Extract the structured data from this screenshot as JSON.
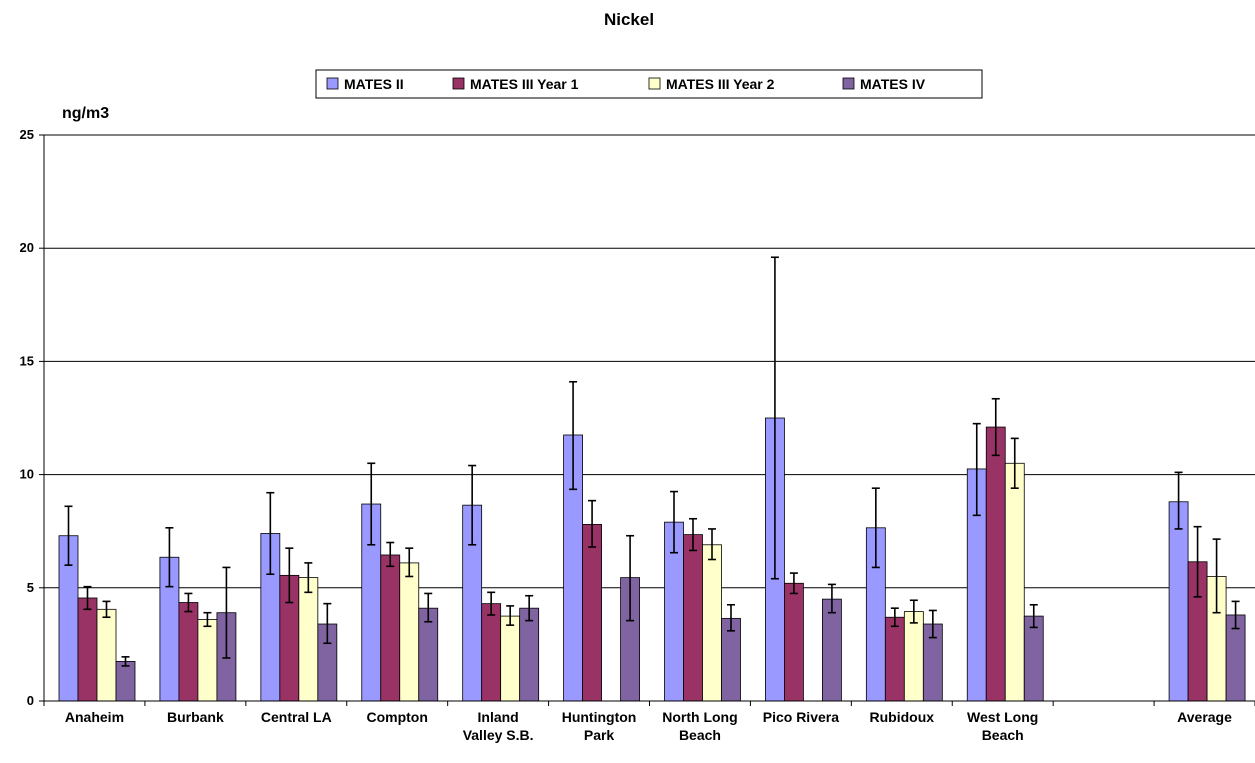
{
  "chart_data": {
    "type": "bar",
    "title": "Nickel",
    "ylabel": "ng/m3",
    "xlabel": "",
    "ylim": [
      0,
      25
    ],
    "yticks": [
      0,
      5,
      10,
      15,
      20,
      25
    ],
    "grid": true,
    "legend_position": "top",
    "categories": [
      [
        "Anaheim"
      ],
      [
        "Burbank"
      ],
      [
        "Central LA"
      ],
      [
        "Compton"
      ],
      [
        "Inland",
        "Valley S.B."
      ],
      [
        "Huntington",
        "Park"
      ],
      [
        "North Long",
        "Beach"
      ],
      [
        "Pico Rivera"
      ],
      [
        "Rubidoux"
      ],
      [
        "West Long",
        "Beach"
      ],
      [
        ""
      ],
      [
        "Average"
      ]
    ],
    "series": [
      {
        "name": "MATES II",
        "color": "#9999FF",
        "values": [
          7.3,
          6.35,
          7.4,
          8.7,
          8.65,
          11.75,
          7.9,
          12.5,
          7.65,
          10.25,
          null,
          8.8
        ],
        "error_low": [
          6.0,
          5.05,
          5.6,
          6.9,
          6.9,
          9.35,
          6.55,
          5.4,
          5.9,
          8.2,
          null,
          7.6
        ],
        "error_high": [
          8.6,
          7.65,
          9.2,
          10.5,
          10.4,
          14.1,
          9.25,
          19.6,
          9.4,
          12.25,
          null,
          10.1
        ]
      },
      {
        "name": "MATES III Year 1",
        "color": "#993366",
        "values": [
          4.55,
          4.35,
          5.55,
          6.45,
          4.3,
          7.8,
          7.35,
          5.2,
          3.7,
          12.1,
          null,
          6.15
        ],
        "error_low": [
          4.05,
          3.95,
          4.35,
          5.95,
          3.8,
          6.8,
          6.65,
          4.75,
          3.3,
          10.85,
          null,
          4.6
        ],
        "error_high": [
          5.05,
          4.75,
          6.75,
          7.0,
          4.8,
          8.85,
          8.05,
          5.65,
          4.1,
          13.35,
          null,
          7.7
        ]
      },
      {
        "name": "MATES III Year 2",
        "color": "#FFFFCC",
        "values": [
          4.05,
          3.6,
          5.45,
          6.1,
          3.75,
          null,
          6.9,
          null,
          3.95,
          10.5,
          null,
          5.5
        ],
        "error_low": [
          3.7,
          3.3,
          4.8,
          5.5,
          3.35,
          null,
          6.25,
          null,
          3.45,
          9.4,
          null,
          3.9
        ],
        "error_high": [
          4.4,
          3.9,
          6.1,
          6.75,
          4.2,
          null,
          7.6,
          null,
          4.45,
          11.6,
          null,
          7.15
        ]
      },
      {
        "name": "MATES IV",
        "color": "#8064A2",
        "values": [
          1.75,
          3.9,
          3.4,
          4.1,
          4.1,
          5.45,
          3.65,
          4.5,
          3.4,
          3.75,
          null,
          3.8
        ],
        "error_low": [
          1.55,
          1.9,
          2.55,
          3.5,
          3.55,
          3.55,
          3.1,
          3.9,
          2.8,
          3.25,
          null,
          3.2
        ],
        "error_high": [
          1.95,
          5.9,
          4.3,
          4.75,
          4.65,
          7.3,
          4.25,
          5.15,
          4.0,
          4.25,
          null,
          4.4
        ]
      }
    ]
  }
}
